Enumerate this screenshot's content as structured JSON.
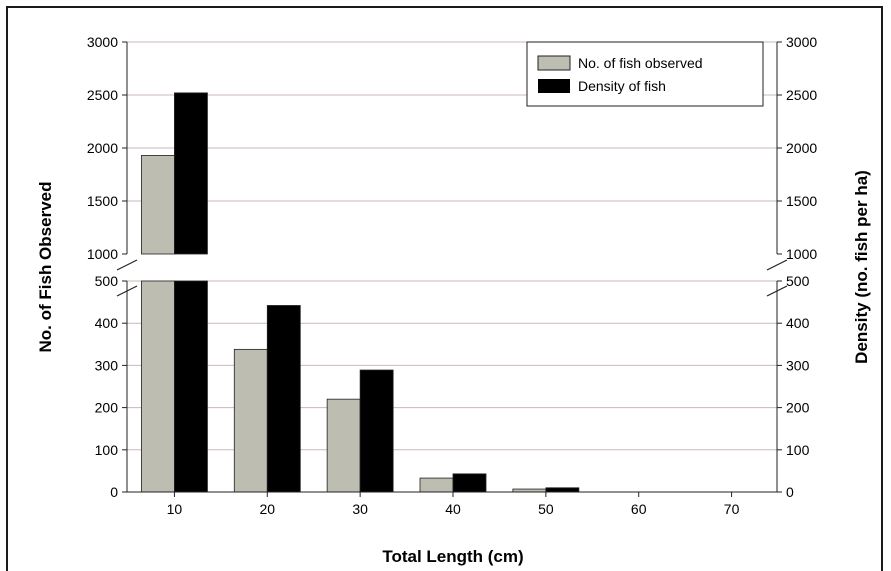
{
  "chart_data": {
    "type": "bar",
    "xlabel": "Total Length (cm)",
    "ylabel_left": "No. of Fish Observed",
    "ylabel_right": "Density (no. fish per ha)",
    "categories": [
      "10",
      "20",
      "30",
      "40",
      "50",
      "60",
      "70"
    ],
    "axis_break": {
      "lower_range": [
        0,
        500
      ],
      "upper_range": [
        1000,
        3000
      ]
    },
    "lower_ticks": [
      "0",
      "100",
      "200",
      "300",
      "400",
      "500"
    ],
    "upper_ticks": [
      "1000",
      "1500",
      "2000",
      "2500",
      "3000"
    ],
    "legend_placement": "top-right",
    "grid": true,
    "series": [
      {
        "name": "No. of fish observed",
        "color": "#bdbdb2",
        "values": [
          1930,
          338,
          220,
          33,
          7,
          0,
          0
        ]
      },
      {
        "name": "Density of fish",
        "color": "#000000",
        "values": [
          2520,
          442,
          289,
          43,
          10,
          0,
          0
        ]
      }
    ]
  }
}
